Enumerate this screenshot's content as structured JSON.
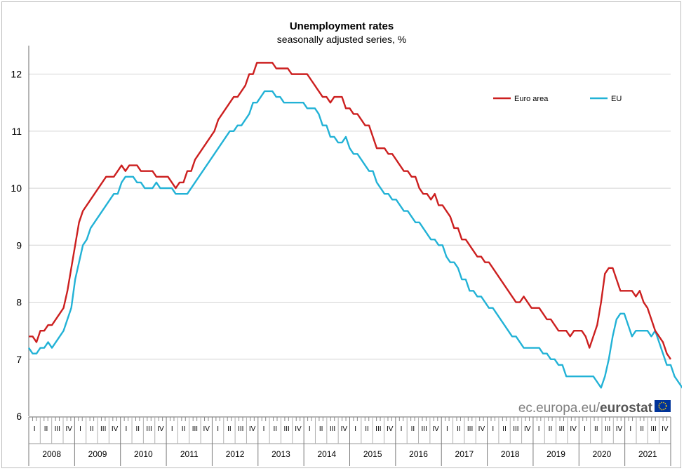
{
  "chart_data": {
    "type": "line",
    "title": "Unemployment rates",
    "subtitle": "seasonally adjusted series, %",
    "ylim": [
      6,
      12.5
    ],
    "yticks": [
      "6",
      "7",
      "8",
      "9",
      "10",
      "11",
      "12"
    ],
    "grid": "horizontal",
    "legend_position": "top-right",
    "quarter_labels": [
      "I",
      "II",
      "III",
      "IV"
    ],
    "years": [
      "2008",
      "2009",
      "2010",
      "2011",
      "2012",
      "2013",
      "2014",
      "2015",
      "2016",
      "2017",
      "2018",
      "2019",
      "2020",
      "2021"
    ],
    "series": [
      {
        "name": "Euro area",
        "color": "#cc1f1f",
        "values": [
          7.4,
          7.4,
          7.3,
          7.5,
          7.5,
          7.6,
          7.6,
          7.7,
          7.8,
          7.9,
          8.2,
          8.6,
          9.0,
          9.4,
          9.6,
          9.7,
          9.8,
          9.9,
          10.0,
          10.1,
          10.2,
          10.2,
          10.2,
          10.3,
          10.4,
          10.3,
          10.4,
          10.4,
          10.4,
          10.3,
          10.3,
          10.3,
          10.3,
          10.2,
          10.2,
          10.2,
          10.2,
          10.1,
          10.0,
          10.1,
          10.1,
          10.3,
          10.3,
          10.5,
          10.6,
          10.7,
          10.8,
          10.9,
          11.0,
          11.2,
          11.3,
          11.4,
          11.5,
          11.6,
          11.6,
          11.7,
          11.8,
          12.0,
          12.0,
          12.2,
          12.2,
          12.2,
          12.2,
          12.2,
          12.1,
          12.1,
          12.1,
          12.1,
          12.0,
          12.0,
          12.0,
          12.0,
          12.0,
          11.9,
          11.8,
          11.7,
          11.6,
          11.6,
          11.5,
          11.6,
          11.6,
          11.6,
          11.4,
          11.4,
          11.3,
          11.3,
          11.2,
          11.1,
          11.1,
          10.9,
          10.7,
          10.7,
          10.7,
          10.6,
          10.6,
          10.5,
          10.4,
          10.3,
          10.3,
          10.2,
          10.2,
          10.0,
          9.9,
          9.9,
          9.8,
          9.9,
          9.7,
          9.7,
          9.6,
          9.5,
          9.3,
          9.3,
          9.1,
          9.1,
          9.0,
          8.9,
          8.8,
          8.8,
          8.7,
          8.7,
          8.6,
          8.5,
          8.4,
          8.3,
          8.2,
          8.1,
          8.0,
          8.0,
          8.1,
          8.0,
          7.9,
          7.9,
          7.9,
          7.8,
          7.7,
          7.7,
          7.6,
          7.5,
          7.5,
          7.5,
          7.4,
          7.5,
          7.5,
          7.5,
          7.4,
          7.2,
          7.4,
          7.6,
          8.0,
          8.5,
          8.6,
          8.6,
          8.4,
          8.2,
          8.2,
          8.2,
          8.2,
          8.1,
          8.2,
          8.0,
          7.9,
          7.7,
          7.5,
          7.4,
          7.3,
          7.1,
          7.0
        ]
      },
      {
        "name": "EU",
        "color": "#22b2d6",
        "values": [
          7.2,
          7.1,
          7.1,
          7.2,
          7.2,
          7.3,
          7.2,
          7.3,
          7.4,
          7.5,
          7.7,
          7.9,
          8.4,
          8.7,
          9.0,
          9.1,
          9.3,
          9.4,
          9.5,
          9.6,
          9.7,
          9.8,
          9.9,
          9.9,
          10.1,
          10.2,
          10.2,
          10.2,
          10.1,
          10.1,
          10.0,
          10.0,
          10.0,
          10.1,
          10.0,
          10.0,
          10.0,
          10.0,
          9.9,
          9.9,
          9.9,
          9.9,
          10.0,
          10.1,
          10.2,
          10.3,
          10.4,
          10.5,
          10.6,
          10.7,
          10.8,
          10.9,
          11.0,
          11.0,
          11.1,
          11.1,
          11.2,
          11.3,
          11.5,
          11.5,
          11.6,
          11.7,
          11.7,
          11.7,
          11.6,
          11.6,
          11.5,
          11.5,
          11.5,
          11.5,
          11.5,
          11.5,
          11.4,
          11.4,
          11.4,
          11.3,
          11.1,
          11.1,
          10.9,
          10.9,
          10.8,
          10.8,
          10.9,
          10.7,
          10.6,
          10.6,
          10.5,
          10.4,
          10.3,
          10.3,
          10.1,
          10.0,
          9.9,
          9.9,
          9.8,
          9.8,
          9.7,
          9.6,
          9.6,
          9.5,
          9.4,
          9.4,
          9.3,
          9.2,
          9.1,
          9.1,
          9.0,
          9.0,
          8.8,
          8.7,
          8.7,
          8.6,
          8.4,
          8.4,
          8.2,
          8.2,
          8.1,
          8.1,
          8.0,
          7.9,
          7.9,
          7.8,
          7.7,
          7.6,
          7.5,
          7.4,
          7.4,
          7.3,
          7.2,
          7.2,
          7.2,
          7.2,
          7.2,
          7.1,
          7.1,
          7.0,
          7.0,
          6.9,
          6.9,
          6.7,
          6.7,
          6.7,
          6.7,
          6.7,
          6.7,
          6.7,
          6.7,
          6.6,
          6.5,
          6.7,
          7.0,
          7.4,
          7.7,
          7.8,
          7.8,
          7.6,
          7.4,
          7.5,
          7.5,
          7.5,
          7.5,
          7.4,
          7.5,
          7.3,
          7.1,
          6.9,
          6.9,
          6.7,
          6.6,
          6.5,
          6.4
        ]
      }
    ]
  },
  "source": {
    "prefix": "ec.europa.eu/",
    "brand": "eurostat"
  }
}
